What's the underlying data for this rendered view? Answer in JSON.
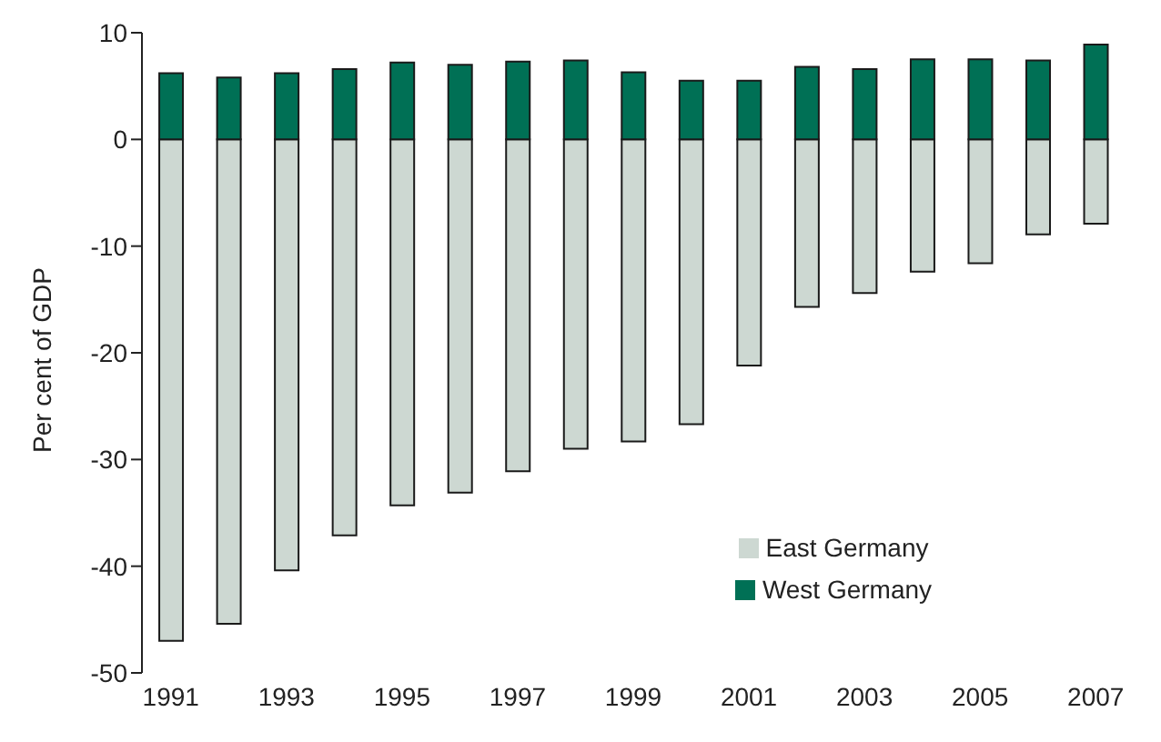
{
  "chart_data": {
    "type": "bar",
    "stacked": true,
    "ylabel": "Per cent of GDP",
    "categories": [
      "1991",
      null,
      "1993",
      null,
      "1995",
      null,
      "1997",
      null,
      "1999",
      null,
      "2001",
      null,
      "2003",
      null,
      "2005",
      null,
      "2007"
    ],
    "series": [
      {
        "name": "East Germany",
        "color": "#cdd8d2",
        "values": [
          -47.0,
          -45.4,
          -40.4,
          -37.1,
          -34.3,
          -33.1,
          -31.1,
          -29.0,
          -28.3,
          -26.7,
          -21.2,
          -15.7,
          -14.4,
          -12.4,
          -11.6,
          -8.9,
          -7.9
        ]
      },
      {
        "name": "West Germany",
        "color": "#007055",
        "values": [
          6.2,
          5.8,
          6.2,
          6.6,
          7.2,
          7.0,
          7.3,
          7.4,
          6.3,
          5.5,
          5.5,
          6.8,
          6.6,
          7.5,
          7.5,
          7.4,
          8.9
        ]
      }
    ],
    "ylim": [
      -50,
      10
    ],
    "yticks": [
      -50,
      -40,
      -30,
      -20,
      -10,
      0,
      10
    ],
    "grid": false,
    "legend": "bottom right"
  }
}
